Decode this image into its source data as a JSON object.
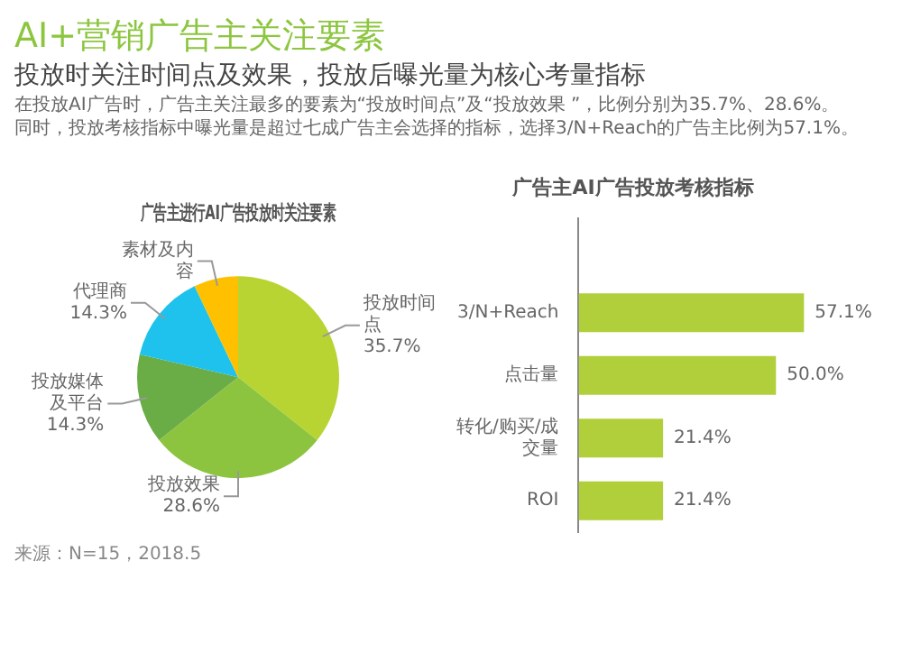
{
  "chart_data": [
    {
      "type": "other",
      "title": "AI+营销广告主关注要素",
      "subtitle": "投放时关注时间点及效果，投放后曝光量为核心考量指标",
      "annotations": [
        "在投放AI广告时，广告主关注最多的要素为“投放时间点”及“投放效果 ”，比例分别为35.7%、28.6%。",
        "同时，投放考核指标中曝光量是超过七成广告主会选择的指标，选择3/N+Reach的广告主比例为57.1%。"
      ]
    },
    {
      "type": "pie",
      "title": "广告主进行AI广告投放时关注要素",
      "categories": [
        "投放时间点",
        "投放效果",
        "投放媒体及平台",
        "代理商",
        "素材及内容"
      ],
      "values": [
        35.7,
        28.6,
        14.3,
        14.3,
        7.1
      ],
      "colors": [
        "#b8d432",
        "#8cc43f",
        "#6aac45",
        "#1ec2ec",
        "#ffc000"
      ],
      "value_labels": [
        "35.7%",
        "28.6%",
        "14.3%",
        "14.3%",
        null
      ],
      "annotations": [
        "来源：N=15，2018.5"
      ]
    },
    {
      "type": "bar",
      "orientation": "horizontal",
      "title": "广告主AI广告投放考核指标",
      "categories": [
        null,
        "3/N+Reach",
        "点击量",
        "转化/购买/成交量",
        "ROI"
      ],
      "values": [
        null,
        57.1,
        50.0,
        21.4,
        21.4
      ],
      "color": "#b0cf3a",
      "value_labels": [
        null,
        "57.1%",
        "50.0%",
        "21.4%",
        "21.4%"
      ]
    }
  ]
}
